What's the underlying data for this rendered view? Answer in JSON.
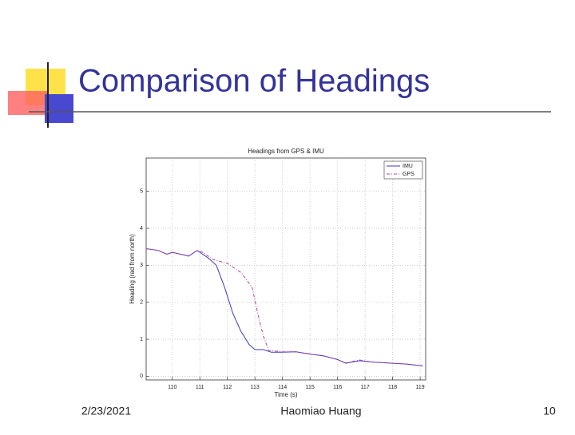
{
  "slide": {
    "title": "Comparison of Headings",
    "date": "2/23/2021",
    "author": "Haomiao Huang",
    "page": "10"
  },
  "chart_data": {
    "type": "line",
    "title": "Headings from GPS & IMU",
    "xlabel": "Time (s)",
    "ylabel": "Heading (rad from north)",
    "series": [
      {
        "name": "IMU",
        "color": "#3a3ab8",
        "dash": "solid",
        "x": [
          109.05,
          109.5,
          109.8,
          110.0,
          110.3,
          110.6,
          110.9,
          111.3,
          111.6,
          111.9,
          112.2,
          112.5,
          112.8,
          113.0,
          113.3,
          113.6,
          114.0,
          114.5,
          115.0,
          115.5,
          116.0,
          116.3,
          116.8,
          117.3,
          118.0,
          118.5,
          119.1
        ],
        "values": [
          3.45,
          3.4,
          3.3,
          3.35,
          3.3,
          3.25,
          3.4,
          3.2,
          3.0,
          2.4,
          1.7,
          1.2,
          0.85,
          0.72,
          0.72,
          0.65,
          0.65,
          0.66,
          0.6,
          0.55,
          0.45,
          0.35,
          0.42,
          0.38,
          0.35,
          0.33,
          0.28
        ]
      },
      {
        "name": "GPS",
        "color": "#b040a0",
        "dash": "dashdot",
        "x": [
          109.05,
          109.5,
          109.8,
          110.0,
          110.3,
          110.6,
          110.9,
          111.1,
          111.5,
          112.0,
          112.5,
          112.9,
          113.1,
          113.3,
          113.5,
          114.0,
          114.5,
          115.0,
          115.5,
          116.0,
          116.3,
          116.8,
          117.3,
          118.0,
          118.5,
          119.1
        ],
        "values": [
          3.45,
          3.4,
          3.3,
          3.35,
          3.3,
          3.25,
          3.4,
          3.35,
          3.15,
          3.05,
          2.8,
          2.4,
          1.7,
          1.1,
          0.7,
          0.66,
          0.66,
          0.6,
          0.55,
          0.45,
          0.36,
          0.44,
          0.38,
          0.35,
          0.33,
          0.28
        ]
      }
    ],
    "xlim": [
      109.05,
      119.2
    ],
    "ylim": [
      -0.1,
      5.9
    ],
    "xticks": [
      110,
      111,
      112,
      113,
      114,
      115,
      116,
      117,
      118,
      119
    ],
    "yticks": [
      0,
      1,
      2,
      3,
      4,
      5
    ],
    "grid": true,
    "legend": "top-right"
  }
}
